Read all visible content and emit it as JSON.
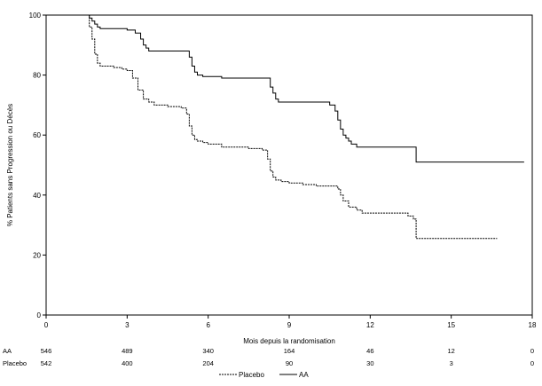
{
  "chart_data": {
    "type": "line",
    "xlabel": "Mois depuis la randomisation",
    "ylabel": "% Patients sans Progression ou Décès",
    "xlim": [
      0,
      18
    ],
    "ylim": [
      0,
      100
    ],
    "xticks": [
      0,
      3,
      6,
      9,
      12,
      15,
      18
    ],
    "yticks": [
      0,
      20,
      40,
      60,
      80,
      100
    ],
    "legend": [
      "Placebo",
      "AA"
    ],
    "series": [
      {
        "name": "AA",
        "style": "solid",
        "color": "#000000",
        "x": [
          0,
          1.6,
          1.7,
          1.8,
          1.9,
          2.0,
          2.5,
          3.0,
          3.3,
          3.5,
          3.6,
          3.7,
          3.8,
          4.0,
          4.6,
          5.3,
          5.4,
          5.5,
          5.6,
          5.8,
          6.0,
          6.5,
          7.5,
          8.2,
          8.3,
          8.4,
          8.5,
          8.6,
          9.0,
          10.5,
          10.7,
          10.8,
          10.9,
          11.0,
          11.1,
          11.2,
          11.3,
          11.5,
          11.7,
          12.0,
          13.0,
          13.6,
          13.7,
          17.7
        ],
        "y": [
          100,
          99,
          98,
          97,
          96,
          95.5,
          95.5,
          95,
          94,
          92,
          90,
          89,
          88,
          88,
          88,
          86,
          83,
          81,
          80,
          79.5,
          79.5,
          79,
          79,
          79,
          76,
          74,
          72,
          71,
          71,
          70,
          68,
          65,
          62,
          60,
          59,
          58,
          57,
          56,
          56,
          56,
          56,
          56,
          51,
          51
        ]
      },
      {
        "name": "Placebo",
        "style": "dashed",
        "color": "#000000",
        "x": [
          0,
          1.6,
          1.7,
          1.8,
          1.9,
          2.0,
          2.5,
          2.8,
          3.0,
          3.2,
          3.4,
          3.6,
          3.8,
          4.0,
          4.5,
          5.0,
          5.2,
          5.3,
          5.4,
          5.5,
          5.6,
          5.8,
          6.0,
          6.5,
          7.5,
          8.0,
          8.2,
          8.3,
          8.4,
          8.5,
          8.7,
          9.0,
          9.5,
          10.0,
          10.8,
          10.9,
          11.0,
          11.2,
          11.5,
          11.7,
          12.0,
          13.0,
          13.4,
          13.6,
          13.7,
          16.7
        ],
        "y": [
          100,
          96,
          92,
          87,
          84,
          83,
          82.5,
          82,
          81.5,
          79,
          75,
          72,
          71,
          70,
          69.5,
          69,
          67,
          63,
          60,
          58.5,
          58,
          57.5,
          57,
          56,
          55.5,
          55,
          52,
          48,
          46,
          45,
          44.5,
          44,
          43.5,
          43,
          42,
          40,
          38,
          36,
          35,
          34,
          34,
          34,
          33,
          32,
          25.5,
          25.5
        ]
      }
    ],
    "at_risk": {
      "times": [
        0,
        3,
        6,
        9,
        12,
        15,
        18
      ],
      "rows": [
        {
          "label": "AA",
          "values": [
            "546",
            "489",
            "340",
            "164",
            "46",
            "12",
            "0"
          ]
        },
        {
          "label": "Placebo",
          "values": [
            "542",
            "400",
            "204",
            "90",
            "30",
            "3",
            "0"
          ]
        }
      ]
    }
  }
}
